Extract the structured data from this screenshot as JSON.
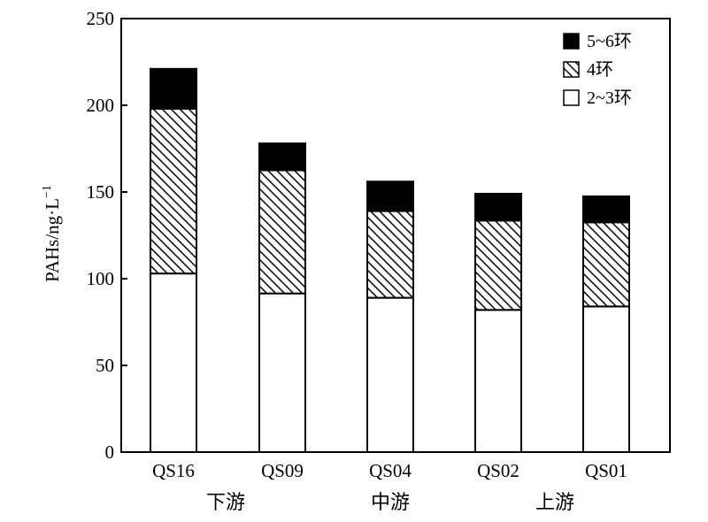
{
  "chart_data": {
    "type": "bar",
    "stacked": true,
    "categories": [
      "QS16",
      "QS09",
      "QS04",
      "QS02",
      "QS01"
    ],
    "series": [
      {
        "name": "2~3环",
        "values": [
          103,
          91.5,
          89,
          82,
          84
        ],
        "fill": "white"
      },
      {
        "name": "4环",
        "values": [
          95,
          71,
          50,
          51.5,
          48.5
        ],
        "fill": "hatch"
      },
      {
        "name": "5~6环",
        "values": [
          23,
          15.5,
          17,
          15.5,
          15
        ],
        "fill": "black"
      }
    ],
    "ylabel": "PAHs/ng·L⁻¹",
    "ylim": [
      0,
      250
    ],
    "yticks": [
      0,
      50,
      100,
      150,
      200,
      250
    ],
    "legend_position": "top-right",
    "grid": false,
    "region_labels": [
      "下游",
      "中游",
      "上游"
    ],
    "region_under_category": [
      "QS16",
      "QS04",
      "QS02"
    ]
  }
}
